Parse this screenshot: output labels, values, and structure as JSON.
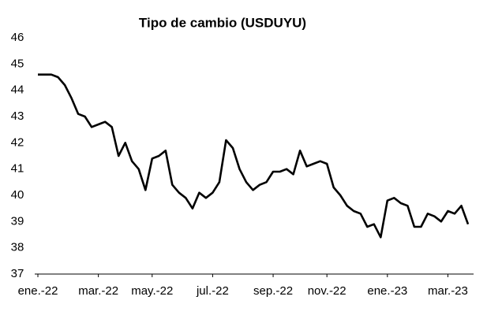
{
  "chart_data": {
    "type": "line",
    "title": "Tipo de cambio (USDUYU)",
    "categories": [
      "ene.-22",
      null,
      null,
      null,
      null,
      null,
      null,
      null,
      null,
      "mar.-22",
      null,
      null,
      null,
      null,
      null,
      null,
      null,
      "may.-22",
      null,
      null,
      null,
      null,
      null,
      null,
      null,
      null,
      "jul.-22",
      null,
      null,
      null,
      null,
      null,
      null,
      null,
      null,
      "sep.-22",
      null,
      null,
      null,
      null,
      null,
      null,
      null,
      "nov.-22",
      null,
      null,
      null,
      null,
      null,
      null,
      null,
      null,
      "ene.-23",
      null,
      null,
      null,
      null,
      null,
      null,
      null,
      null,
      "mar.-23",
      null,
      null,
      null
    ],
    "values": [
      44.6,
      44.6,
      44.6,
      44.5,
      44.2,
      43.7,
      43.1,
      43.0,
      42.6,
      42.7,
      42.8,
      42.6,
      41.5,
      42.0,
      41.3,
      41.0,
      40.2,
      41.4,
      41.5,
      41.7,
      40.4,
      40.1,
      39.9,
      39.5,
      40.1,
      39.9,
      40.1,
      40.5,
      42.1,
      41.8,
      41.0,
      40.5,
      40.2,
      40.4,
      40.5,
      40.9,
      40.9,
      41.0,
      40.8,
      41.7,
      41.1,
      41.2,
      41.3,
      41.2,
      40.3,
      40.0,
      39.6,
      39.4,
      39.3,
      38.8,
      38.9,
      38.4,
      39.8,
      39.9,
      39.7,
      39.6,
      38.8,
      38.8,
      39.3,
      39.2,
      39.0,
      39.4,
      39.3,
      39.6,
      38.9
    ],
    "color": "#000000",
    "ylim": [
      37,
      46
    ],
    "yticks": [
      37,
      38,
      39,
      40,
      41,
      42,
      43,
      44,
      45,
      46
    ],
    "grid": false
  }
}
